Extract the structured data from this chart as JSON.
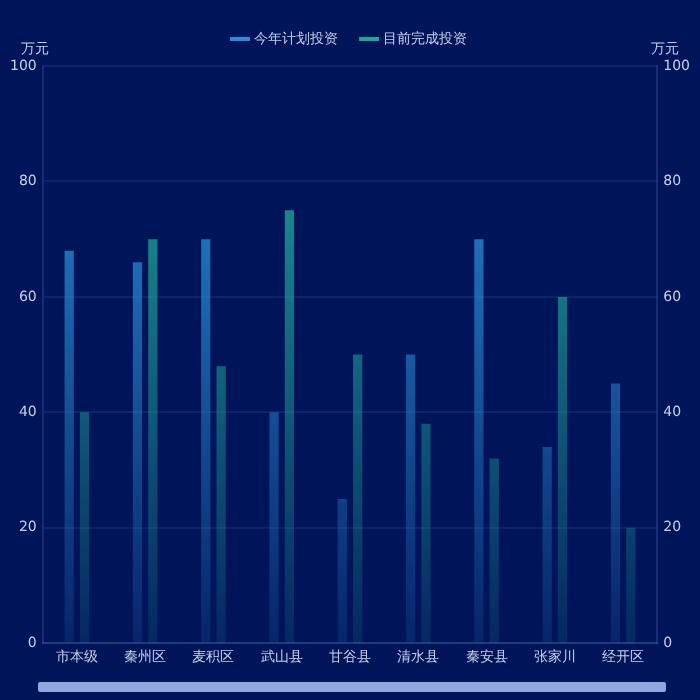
{
  "chart_data": {
    "type": "bar",
    "ylabel": "万元",
    "y2label": "万元",
    "categories": [
      "市本级",
      "秦州区",
      "麦积区",
      "武山县",
      "甘谷县",
      "清水县",
      "秦安县",
      "张家川",
      "经开区"
    ],
    "series": [
      {
        "name": "今年计划投资",
        "color": "#2a8fd8",
        "values": [
          68,
          66,
          70,
          40,
          25,
          50,
          70,
          34,
          45
        ]
      },
      {
        "name": "目前完成投资",
        "color": "#1fa59a",
        "axis": "y2",
        "values": [
          40,
          70,
          48,
          75,
          50,
          38,
          32,
          60,
          20
        ]
      }
    ],
    "ylim": [
      0,
      100
    ],
    "yticks": [
      0,
      20,
      40,
      60,
      80,
      100
    ],
    "y2lim": [
      0,
      100
    ],
    "y2ticks": [
      0,
      20,
      40,
      60,
      80,
      100
    ],
    "grid": "y",
    "legend": "top"
  }
}
